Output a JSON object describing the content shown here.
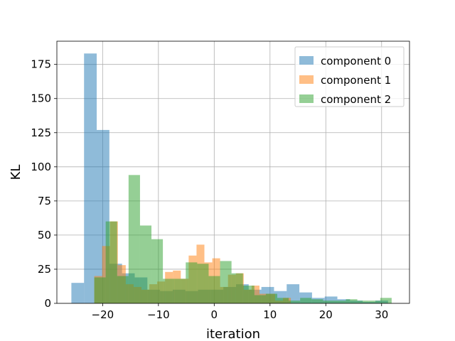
{
  "chart_data": {
    "type": "bar",
    "subtype": "histogram",
    "title": "",
    "xlabel": "iteration",
    "ylabel": "KL",
    "xlim": [
      -28.2,
      35.0
    ],
    "ylim": [
      0,
      192
    ],
    "xticks": [
      -20,
      -10,
      0,
      10,
      20,
      30
    ],
    "xtick_labels": [
      "−20",
      "−10",
      "0",
      "10",
      "20",
      "30"
    ],
    "yticks": [
      0,
      25,
      50,
      75,
      100,
      125,
      150,
      175
    ],
    "ytick_labels": [
      "0",
      "25",
      "50",
      "75",
      "100",
      "125",
      "150",
      "175"
    ],
    "grid": true,
    "legend_position": "top-right",
    "series": [
      {
        "name": "component 0",
        "color": "#1f77b4",
        "opacity": 0.5,
        "bin_width": 2.27,
        "bin_starts": [
          -25.6,
          -23.33,
          -21.06,
          -18.79,
          -16.52,
          -14.25,
          -11.98,
          -9.71,
          -7.44,
          -5.17,
          -2.9,
          -0.63,
          1.64,
          3.91,
          6.18,
          8.45,
          10.72,
          12.99,
          15.26,
          17.53,
          19.8,
          22.07,
          24.34,
          26.61,
          28.88
        ],
        "values": [
          15,
          183,
          127,
          29,
          22,
          19,
          10,
          9,
          10,
          9,
          10,
          10,
          12,
          14,
          10,
          12,
          9,
          14,
          8,
          4,
          5,
          3,
          2,
          1,
          2
        ]
      },
      {
        "name": "component 1",
        "color": "#ff7f0e",
        "opacity": 0.5,
        "bin_width": 1.41,
        "bin_starts": [
          -21.5,
          -20.09,
          -18.68,
          -17.27,
          -15.86,
          -14.45,
          -13.04,
          -11.63,
          -10.22,
          -8.81,
          -7.4,
          -5.99,
          -4.58,
          -3.17,
          -1.76,
          -0.35,
          1.06,
          2.47,
          3.88,
          5.29,
          6.7,
          8.11,
          9.52,
          10.93,
          12.32
        ],
        "values": [
          20,
          42,
          60,
          28,
          14,
          12,
          10,
          14,
          16,
          23,
          24,
          18,
          35,
          43,
          30,
          33,
          12,
          21,
          22,
          10,
          13,
          7,
          7,
          2,
          4
        ]
      },
      {
        "name": "component 2",
        "color": "#2ca02c",
        "opacity": 0.5,
        "bin_width": 2.05,
        "bin_starts": [
          -21.5,
          -19.45,
          -17.4,
          -15.35,
          -13.3,
          -11.25,
          -9.2,
          -7.15,
          -5.1,
          -3.05,
          -1.0,
          1.05,
          3.1,
          5.15,
          7.2,
          9.25,
          11.3,
          13.35,
          15.4,
          17.45,
          19.5,
          21.55,
          23.6,
          25.65,
          27.7,
          29.75
        ],
        "values": [
          19,
          60,
          20,
          94,
          57,
          47,
          18,
          18,
          30,
          29,
          20,
          31,
          22,
          13,
          6,
          7,
          4,
          2,
          4,
          3,
          2,
          2,
          3,
          2,
          2,
          4
        ]
      }
    ]
  }
}
